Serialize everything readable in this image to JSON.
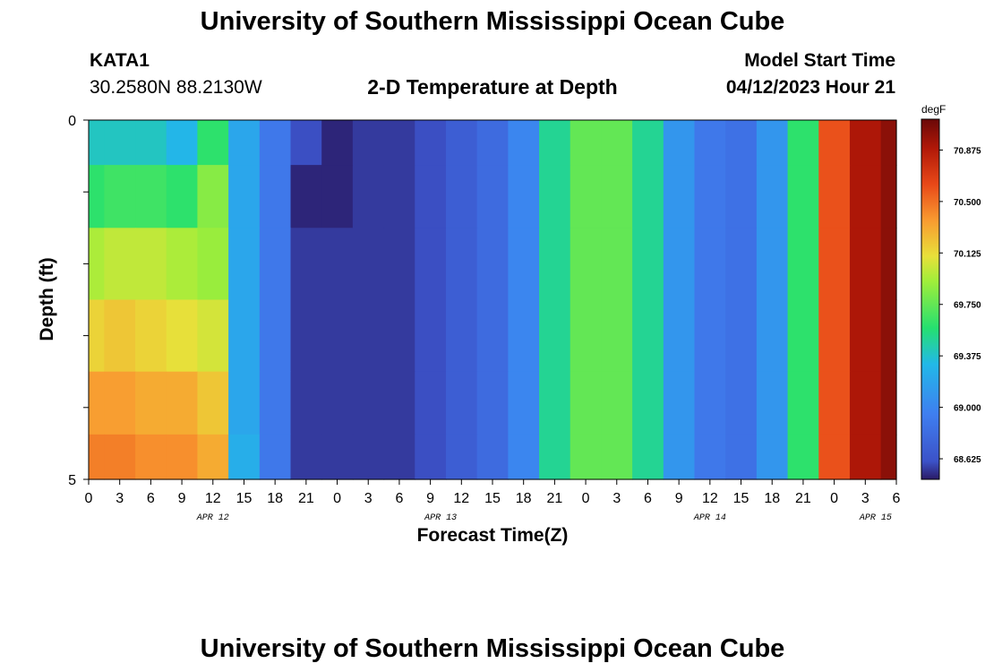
{
  "page": {
    "title": "University of Southern Mississippi Ocean Cube",
    "footer_title": "University of Southern Mississippi Ocean Cube",
    "station_id": "KATA1",
    "coordinates": "30.2580N  88.2130W",
    "subtitle": "2-D Temperature at Depth",
    "model_start_label": "Model Start Time",
    "model_start_value": "04/12/2023 Hour 21"
  },
  "chart_data": {
    "type": "heatmap",
    "title": "2-D Temperature at Depth",
    "xlabel": "Forecast Time(Z)",
    "ylabel": "Depth (ft)",
    "x_tick_labels": [
      "0",
      "3",
      "6",
      "9",
      "12",
      "15",
      "18",
      "21",
      "0",
      "3",
      "6",
      "9",
      "12",
      "15",
      "18",
      "21",
      "0",
      "3",
      "6",
      "9",
      "12",
      "15",
      "18",
      "21",
      "0",
      "3",
      "6"
    ],
    "x_range_hours": [
      0,
      78
    ],
    "date_labels": [
      {
        "label": "APR 12",
        "hour": 12
      },
      {
        "label": "APR 13",
        "hour": 34
      },
      {
        "label": "APR 14",
        "hour": 60
      },
      {
        "label": "APR 15",
        "hour": 76
      }
    ],
    "y_tick_labels": [
      "0",
      "5"
    ],
    "y_range_ft": [
      0,
      5
    ],
    "colorbar": {
      "unit": "degF",
      "min": 68.475,
      "max": 71.1,
      "tick_labels": [
        "70.875",
        "70.500",
        "70.125",
        "69.750",
        "69.375",
        "69.000",
        "68.625"
      ],
      "tick_values": [
        70.875,
        70.5,
        70.125,
        69.75,
        69.375,
        69.0,
        68.625
      ]
    },
    "depth_layers_ft": [
      0.25,
      1.0,
      2.0,
      3.0,
      4.0,
      4.75
    ],
    "hours": [
      0,
      3,
      6,
      9,
      12,
      15,
      18,
      21,
      24,
      27,
      30,
      33,
      36,
      39,
      42,
      45,
      48,
      51,
      54,
      57,
      60,
      63,
      66,
      69,
      72,
      75,
      78
    ],
    "temperatures_degF": [
      [
        69.4,
        69.4,
        69.4,
        69.3,
        69.6,
        69.2,
        68.9,
        68.6,
        68.5,
        68.55,
        68.55,
        68.6,
        68.7,
        68.8,
        69.0,
        69.5,
        69.75,
        69.75,
        69.5,
        69.1,
        68.9,
        68.85,
        69.1,
        69.6,
        70.6,
        70.9,
        71.0
      ],
      [
        69.6,
        69.65,
        69.65,
        69.6,
        69.85,
        69.2,
        68.9,
        68.5,
        68.5,
        68.55,
        68.55,
        68.6,
        68.7,
        68.8,
        69.0,
        69.5,
        69.75,
        69.75,
        69.5,
        69.1,
        68.9,
        68.85,
        69.1,
        69.6,
        70.6,
        70.9,
        71.0
      ],
      [
        69.95,
        70.0,
        70.0,
        69.95,
        69.9,
        69.2,
        68.9,
        68.55,
        68.55,
        68.55,
        68.55,
        68.6,
        68.7,
        68.8,
        69.0,
        69.5,
        69.75,
        69.75,
        69.5,
        69.1,
        68.9,
        68.85,
        69.1,
        69.6,
        70.6,
        70.9,
        71.0
      ],
      [
        70.15,
        70.2,
        70.15,
        70.1,
        70.05,
        69.2,
        68.9,
        68.55,
        68.55,
        68.55,
        68.55,
        68.6,
        68.7,
        68.8,
        69.0,
        69.5,
        69.75,
        69.75,
        69.5,
        69.1,
        68.9,
        68.85,
        69.1,
        69.6,
        70.6,
        70.9,
        71.0
      ],
      [
        70.35,
        70.35,
        70.3,
        70.3,
        70.2,
        69.2,
        68.9,
        68.55,
        68.55,
        68.55,
        68.55,
        68.6,
        68.7,
        68.8,
        69.0,
        69.5,
        69.75,
        69.75,
        69.5,
        69.1,
        68.9,
        68.85,
        69.1,
        69.6,
        70.6,
        70.9,
        71.0
      ],
      [
        70.45,
        70.45,
        70.4,
        70.4,
        70.3,
        69.25,
        68.9,
        68.55,
        68.55,
        68.55,
        68.55,
        68.6,
        68.7,
        68.8,
        69.0,
        69.5,
        69.75,
        69.75,
        69.5,
        69.1,
        68.9,
        68.85,
        69.1,
        69.6,
        70.6,
        70.9,
        71.0
      ]
    ]
  }
}
